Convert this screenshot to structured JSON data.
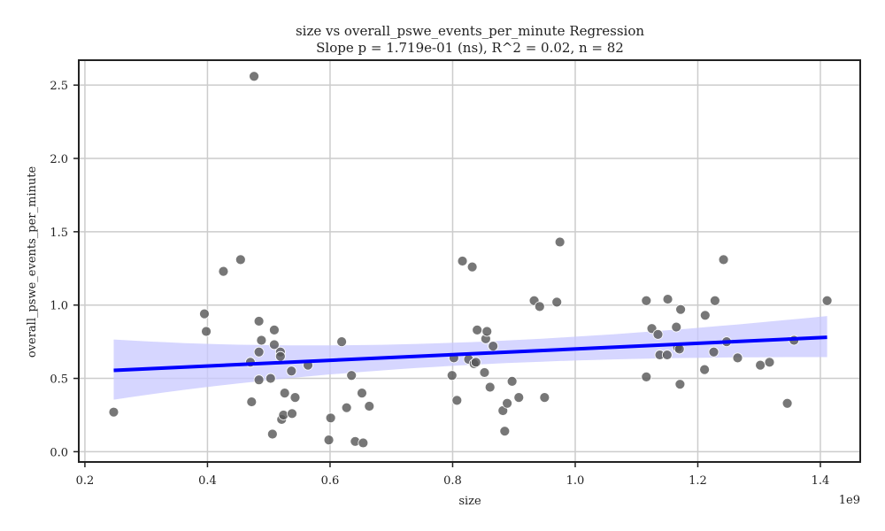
{
  "chart_data": {
    "type": "scatter",
    "title": "size vs overall_pswe_events_per_minute Regression",
    "subtitle": "Slope p = 1.719e-01 (ns), R^2 = 0.02, n = 82",
    "xlabel": "size",
    "ylabel": "overall_pswe_events_per_minute",
    "x_offset_label": "1e9",
    "xlim": [
      0.19,
      1.465
    ],
    "ylim": [
      -0.07,
      2.67
    ],
    "x_ticks": [
      0.2,
      0.4,
      0.6,
      0.8,
      1.0,
      1.2,
      1.4
    ],
    "x_tick_labels": [
      "0.2",
      "0.4",
      "0.6",
      "0.8",
      "1.0",
      "1.2",
      "1.4"
    ],
    "y_ticks": [
      0.0,
      0.5,
      1.0,
      1.5,
      2.0,
      2.5
    ],
    "y_tick_labels": [
      "0.0",
      "0.5",
      "1.0",
      "1.5",
      "2.0",
      "2.5"
    ],
    "grid": true,
    "colors": {
      "points": "#555555",
      "regression_line": "#0000ff",
      "confidence_band": "#c8c8ff",
      "grid": "#cccccc",
      "frame": "#222222"
    },
    "points": [
      [
        0.247,
        0.27
      ],
      [
        0.395,
        0.94
      ],
      [
        0.398,
        0.82
      ],
      [
        0.426,
        1.23
      ],
      [
        0.454,
        1.31
      ],
      [
        0.47,
        0.61
      ],
      [
        0.472,
        0.34
      ],
      [
        0.476,
        2.56
      ],
      [
        0.484,
        0.89
      ],
      [
        0.484,
        0.68
      ],
      [
        0.484,
        0.49
      ],
      [
        0.488,
        0.76
      ],
      [
        0.503,
        0.5
      ],
      [
        0.506,
        0.12
      ],
      [
        0.509,
        0.83
      ],
      [
        0.509,
        0.73
      ],
      [
        0.519,
        0.68
      ],
      [
        0.519,
        0.65
      ],
      [
        0.521,
        0.22
      ],
      [
        0.524,
        0.25
      ],
      [
        0.526,
        0.4
      ],
      [
        0.537,
        0.55
      ],
      [
        0.538,
        0.26
      ],
      [
        0.543,
        0.37
      ],
      [
        0.564,
        0.59
      ],
      [
        0.598,
        0.08
      ],
      [
        0.601,
        0.23
      ],
      [
        0.619,
        0.75
      ],
      [
        0.627,
        0.3
      ],
      [
        0.635,
        0.52
      ],
      [
        0.641,
        0.07
      ],
      [
        0.652,
        0.4
      ],
      [
        0.654,
        0.06
      ],
      [
        0.664,
        0.31
      ],
      [
        0.799,
        0.52
      ],
      [
        0.802,
        0.64
      ],
      [
        0.807,
        0.35
      ],
      [
        0.816,
        1.3
      ],
      [
        0.826,
        0.63
      ],
      [
        0.832,
        1.26
      ],
      [
        0.835,
        0.6
      ],
      [
        0.838,
        0.61
      ],
      [
        0.84,
        0.83
      ],
      [
        0.852,
        0.54
      ],
      [
        0.854,
        0.77
      ],
      [
        0.856,
        0.82
      ],
      [
        0.861,
        0.44
      ],
      [
        0.866,
        0.72
      ],
      [
        0.882,
        0.28
      ],
      [
        0.885,
        0.14
      ],
      [
        0.889,
        0.33
      ],
      [
        0.897,
        0.48
      ],
      [
        0.908,
        0.37
      ],
      [
        0.933,
        1.03
      ],
      [
        0.942,
        0.99
      ],
      [
        0.95,
        0.37
      ],
      [
        0.97,
        1.02
      ],
      [
        0.975,
        1.43
      ],
      [
        1.116,
        1.03
      ],
      [
        1.116,
        0.51
      ],
      [
        1.125,
        0.84
      ],
      [
        1.135,
        0.8
      ],
      [
        1.138,
        0.66
      ],
      [
        1.15,
        0.66
      ],
      [
        1.151,
        1.04
      ],
      [
        1.165,
        0.85
      ],
      [
        1.167,
        0.71
      ],
      [
        1.17,
        0.7
      ],
      [
        1.171,
        0.46
      ],
      [
        1.172,
        0.97
      ],
      [
        1.211,
        0.56
      ],
      [
        1.212,
        0.93
      ],
      [
        1.226,
        0.68
      ],
      [
        1.228,
        1.03
      ],
      [
        1.242,
        1.31
      ],
      [
        1.247,
        0.75
      ],
      [
        1.265,
        0.64
      ],
      [
        1.302,
        0.59
      ],
      [
        1.317,
        0.61
      ],
      [
        1.346,
        0.33
      ],
      [
        1.357,
        0.76
      ],
      [
        1.411,
        1.03
      ]
    ],
    "regression": {
      "x": [
        0.247,
        1.411
      ],
      "y": [
        0.555,
        0.78
      ],
      "ci_lower": [
        0.355,
        0.645
      ],
      "ci_upper": [
        0.765,
        0.925
      ]
    }
  }
}
